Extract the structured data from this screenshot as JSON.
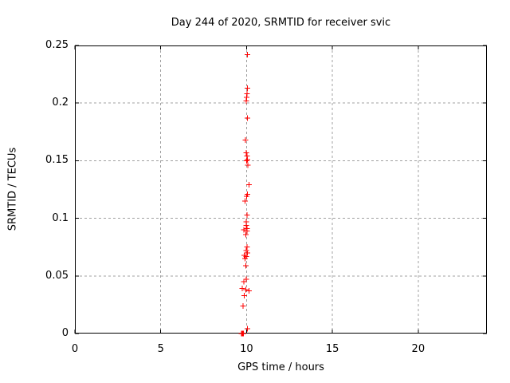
{
  "title": "Day 244 of 2020, SRMTID for receiver svic",
  "colors": {
    "background": "#ffffff",
    "border": "#000000",
    "grid": "#a0a0a0",
    "marker": "#ff0000",
    "text": "#000000"
  },
  "chart_data": {
    "type": "scatter",
    "title": "Day 244 of 2020, SRMTID for receiver svic",
    "xlabel": "GPS time / hours",
    "ylabel": "SRMTID / TECUs",
    "xlim": [
      0,
      24
    ],
    "ylim": [
      0,
      0.25
    ],
    "xticks": [
      0,
      5,
      10,
      15,
      20
    ],
    "xtick_labels": [
      "0",
      "5",
      "10",
      "15",
      "20"
    ],
    "yticks": [
      0,
      0.05,
      0.1,
      0.15,
      0.2,
      0.25
    ],
    "ytick_labels": [
      "0",
      "0.05",
      "0.1",
      "0.15",
      "0.2",
      "0.25"
    ],
    "grid": true,
    "legend": false,
    "marker_style": "plus",
    "series": [
      {
        "name": "SRMTID",
        "color": "#ff0000",
        "points": [
          [
            10.05,
            0.242
          ],
          [
            10.05,
            0.213
          ],
          [
            10.02,
            0.208
          ],
          [
            10.0,
            0.205
          ],
          [
            9.97,
            0.202
          ],
          [
            10.05,
            0.187
          ],
          [
            9.94,
            0.168
          ],
          [
            9.99,
            0.157
          ],
          [
            10.02,
            0.154
          ],
          [
            10.05,
            0.151
          ],
          [
            10.0,
            0.15
          ],
          [
            10.08,
            0.146
          ],
          [
            10.15,
            0.129
          ],
          [
            10.05,
            0.121
          ],
          [
            10.0,
            0.119
          ],
          [
            9.9,
            0.115
          ],
          [
            10.03,
            0.103
          ],
          [
            9.97,
            0.097
          ],
          [
            9.99,
            0.094
          ],
          [
            10.03,
            0.091
          ],
          [
            9.84,
            0.09
          ],
          [
            10.03,
            0.089
          ],
          [
            9.95,
            0.086
          ],
          [
            10.03,
            0.075
          ],
          [
            9.98,
            0.072
          ],
          [
            10.06,
            0.07
          ],
          [
            9.87,
            0.068
          ],
          [
            9.98,
            0.067
          ],
          [
            9.92,
            0.065
          ],
          [
            9.95,
            0.059
          ],
          [
            9.98,
            0.047
          ],
          [
            9.84,
            0.045
          ],
          [
            9.75,
            0.039
          ],
          [
            9.95,
            0.038
          ],
          [
            10.15,
            0.037
          ],
          [
            9.87,
            0.033
          ],
          [
            9.8,
            0.024
          ],
          [
            10.06,
            0.004
          ],
          [
            9.7,
            0.0
          ],
          [
            9.73,
            0.0
          ],
          [
            9.76,
            0.0
          ],
          [
            9.79,
            0.0
          ],
          [
            9.82,
            0.0
          ]
        ]
      }
    ]
  }
}
